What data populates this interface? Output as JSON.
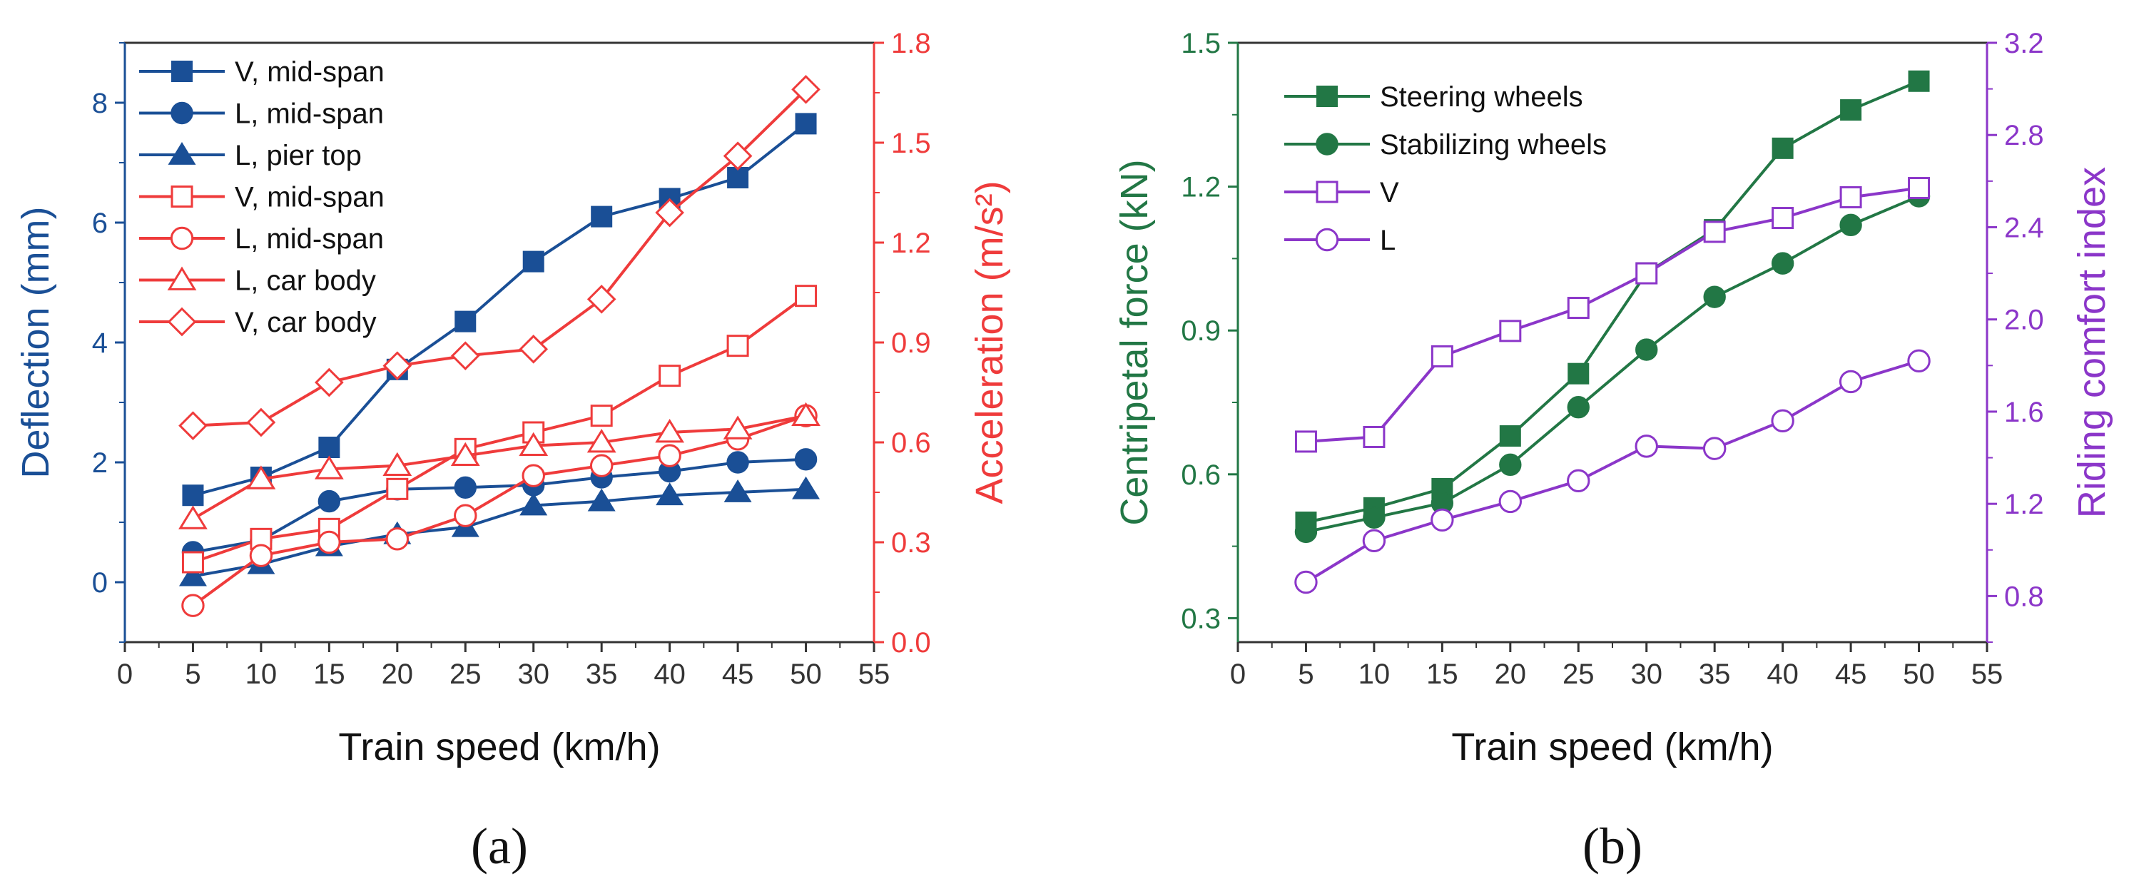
{
  "colors": {
    "blue": "#1a4f96",
    "red": "#ef3b3b",
    "green": "#227745",
    "purple": "#8b36c9",
    "axis": "#333333"
  },
  "chart_data": [
    {
      "id": "a",
      "type": "line",
      "panel_label": "(a)",
      "xlabel": "Train speed (km/h)",
      "ylabel_left": "Deflection (mm)",
      "ylabel_right": "Acceleration (m/s²)",
      "xlim": [
        0,
        55
      ],
      "ylim_left": [
        -1,
        9
      ],
      "ylim_right": [
        0,
        1.8
      ],
      "xticks": [
        "0",
        "5",
        "10",
        "15",
        "20",
        "25",
        "30",
        "35",
        "40",
        "45",
        "50",
        "55"
      ],
      "yticks_left": [
        "0",
        "2",
        "4",
        "6",
        "8"
      ],
      "yticks_right": [
        "0.0",
        "0.3",
        "0.6",
        "0.9",
        "1.2",
        "1.5",
        "1.8"
      ],
      "x": [
        5,
        10,
        15,
        20,
        25,
        30,
        35,
        40,
        45,
        50
      ],
      "series": [
        {
          "name": "V, mid-span",
          "axis": "left",
          "color": "#1a4f96",
          "marker": "square",
          "filled": true,
          "values": [
            1.45,
            1.75,
            2.25,
            3.55,
            4.35,
            5.35,
            6.1,
            6.4,
            6.75,
            7.65
          ]
        },
        {
          "name": "L, mid-span",
          "axis": "left",
          "color": "#1a4f96",
          "marker": "circle",
          "filled": true,
          "values": [
            0.5,
            0.7,
            1.35,
            1.55,
            1.58,
            1.62,
            1.75,
            1.85,
            2.0,
            2.05
          ]
        },
        {
          "name": "L, pier top",
          "axis": "left",
          "color": "#1a4f96",
          "marker": "triangle",
          "filled": true,
          "values": [
            0.1,
            0.3,
            0.6,
            0.8,
            0.92,
            1.28,
            1.35,
            1.45,
            1.5,
            1.55
          ]
        },
        {
          "name": "V, mid-span",
          "axis": "right",
          "color": "#ef3b3b",
          "marker": "square",
          "filled": false,
          "values": [
            0.24,
            0.31,
            0.34,
            0.46,
            0.58,
            0.63,
            0.68,
            0.8,
            0.89,
            1.04
          ]
        },
        {
          "name": "L, mid-span",
          "axis": "right",
          "color": "#ef3b3b",
          "marker": "circle",
          "filled": false,
          "values": [
            0.11,
            0.26,
            0.3,
            0.31,
            0.38,
            0.5,
            0.53,
            0.56,
            0.61,
            0.68
          ]
        },
        {
          "name": "L, car body",
          "axis": "right",
          "color": "#ef3b3b",
          "marker": "triangle",
          "filled": false,
          "values": [
            0.37,
            0.49,
            0.52,
            0.53,
            0.56,
            0.59,
            0.6,
            0.63,
            0.64,
            0.68
          ]
        },
        {
          "name": "V, car body",
          "axis": "right",
          "color": "#ef3b3b",
          "marker": "diamond",
          "filled": false,
          "values": [
            0.65,
            0.66,
            0.78,
            0.83,
            0.86,
            0.88,
            1.03,
            1.29,
            1.46,
            1.66
          ]
        }
      ],
      "legend_position": "top-left"
    },
    {
      "id": "b",
      "type": "line",
      "panel_label": "(b)",
      "xlabel": "Train speed (km/h)",
      "ylabel_left": "Centripetal force (kN)",
      "ylabel_right": "Riding comfort index",
      "xlim": [
        0,
        55
      ],
      "ylim_left": [
        0.25,
        1.5
      ],
      "ylim_right": [
        0.6,
        3.2
      ],
      "xticks": [
        "0",
        "5",
        "10",
        "15",
        "20",
        "25",
        "30",
        "35",
        "40",
        "45",
        "50",
        "55"
      ],
      "yticks_left": [
        "0.3",
        "0.6",
        "0.9",
        "1.2",
        "1.5"
      ],
      "yticks_right": [
        "0.8",
        "1.2",
        "1.6",
        "2.0",
        "2.4",
        "2.8",
        "3.2"
      ],
      "x": [
        5,
        10,
        15,
        20,
        25,
        30,
        35,
        40,
        45,
        50
      ],
      "series": [
        {
          "name": "Steering wheels",
          "axis": "left",
          "color": "#227745",
          "marker": "square",
          "filled": true,
          "values": [
            0.5,
            0.53,
            0.57,
            0.68,
            0.81,
            1.02,
            1.11,
            1.28,
            1.36,
            1.42
          ]
        },
        {
          "name": "Stabilizing wheels",
          "axis": "left",
          "color": "#227745",
          "marker": "circle",
          "filled": true,
          "values": [
            0.48,
            0.51,
            0.54,
            0.62,
            0.74,
            0.86,
            0.97,
            1.04,
            1.12,
            1.18
          ]
        },
        {
          "name": "V",
          "axis": "right",
          "color": "#8b36c9",
          "marker": "square",
          "filled": false,
          "values": [
            1.47,
            1.49,
            1.84,
            1.95,
            2.05,
            2.2,
            2.38,
            2.44,
            2.53,
            2.57
          ]
        },
        {
          "name": "L",
          "axis": "right",
          "color": "#8b36c9",
          "marker": "circle",
          "filled": false,
          "values": [
            0.86,
            1.04,
            1.13,
            1.21,
            1.3,
            1.45,
            1.44,
            1.56,
            1.73,
            1.82
          ]
        }
      ],
      "legend_position": "top-left"
    }
  ]
}
